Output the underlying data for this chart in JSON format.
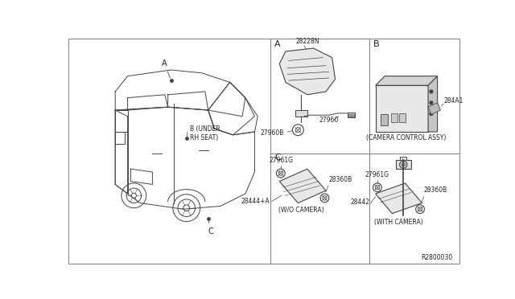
{
  "bg_color": "#ffffff",
  "line_color": "#333333",
  "fig_width": 6.4,
  "fig_height": 3.72,
  "dpi": 100,
  "part_numbers": {
    "main_antenna": "28228N",
    "connector1": "27960B",
    "connector2": "27960",
    "camera_control": "284A1",
    "camera_label": "(CAMERA CONTROL ASSY)",
    "part_c1": "27961G",
    "part_c2": "28360B",
    "part_c3": "28444+A",
    "part_c4": "27961G",
    "part_c5": "28360B",
    "part_c6": "28442",
    "label_wo_camera": "(W/O CAMERA)",
    "label_with_camera": "(WITH CAMERA)",
    "ref_number": "R2800030"
  },
  "divider_color": "#888888",
  "text_color": "#222222",
  "font_size_small": 5.5,
  "font_size_medium": 7,
  "font_size_large": 8,
  "section_labels": [
    "A",
    "B",
    "C"
  ],
  "car_labels": {
    "A": "A",
    "B": "B (UNDER\nRH SEAT)",
    "C": "C"
  }
}
